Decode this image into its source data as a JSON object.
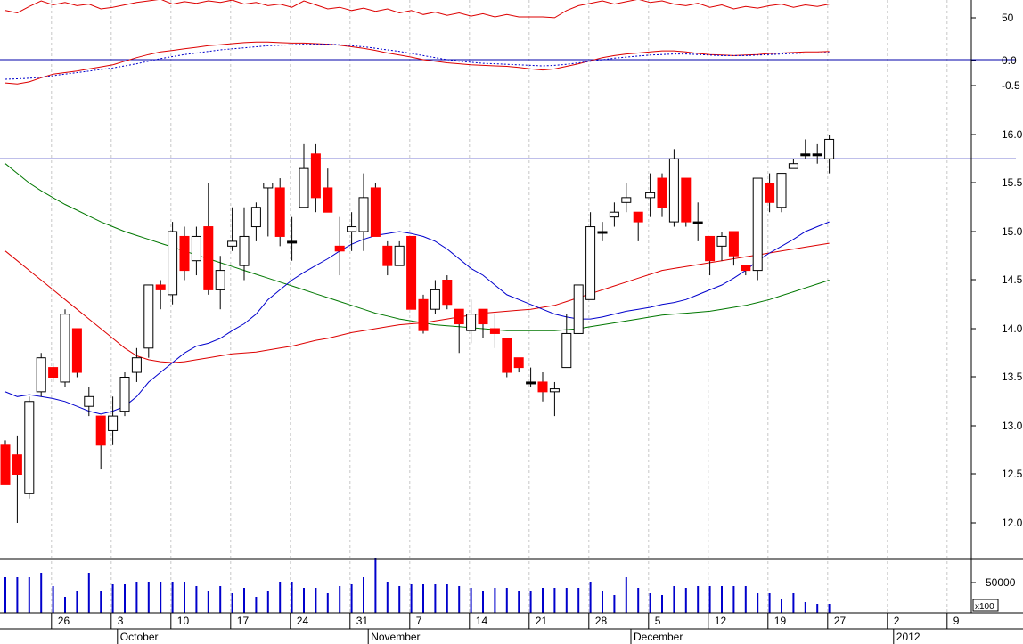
{
  "chart_data": {
    "type": "candlestick",
    "price_axis": {
      "ticks": [
        "16.0",
        "15.5",
        "15.0",
        "14.5",
        "14.0",
        "13.5",
        "13.0",
        "12.5",
        "12.0"
      ],
      "ylim": [
        11.6,
        16.5
      ]
    },
    "indicator_axis": {
      "ticks": [
        "50",
        "0.0",
        "-0.5"
      ]
    },
    "volume_axis": {
      "ticks": [
        "50000"
      ],
      "multiplier_label": "x100"
    },
    "x_day_labels": [
      {
        "label": "26",
        "bar": 2
      },
      {
        "label": "3",
        "bar": 7
      },
      {
        "label": "10",
        "bar": 12
      },
      {
        "label": "17",
        "bar": 17
      },
      {
        "label": "24",
        "bar": 22
      },
      {
        "label": "31",
        "bar": 27
      },
      {
        "label": "7",
        "bar": 32
      },
      {
        "label": "14",
        "bar": 37
      },
      {
        "label": "21",
        "bar": 42
      },
      {
        "label": "28",
        "bar": 47
      },
      {
        "label": "5",
        "bar": 52
      },
      {
        "label": "12",
        "bar": 57
      },
      {
        "label": "19",
        "bar": 62
      },
      {
        "label": "27",
        "bar": 67
      },
      {
        "label": "2",
        "bar": 72
      },
      {
        "label": "9",
        "bar": 77
      }
    ],
    "x_month_labels": [
      {
        "label": "October",
        "bar": 7
      },
      {
        "label": "November",
        "bar": 28
      },
      {
        "label": "December",
        "bar": 50
      },
      {
        "label": "2012",
        "bar": 72
      }
    ],
    "resistance_level": 15.75,
    "zero_line": 0.0,
    "candles": [
      [
        12.8,
        12.4,
        12.85,
        12.4
      ],
      [
        12.7,
        12.5,
        12.9,
        12.0
      ],
      [
        12.3,
        13.25,
        13.3,
        12.25
      ],
      [
        13.35,
        13.7,
        13.75,
        13.3
      ],
      [
        13.6,
        13.5,
        13.65,
        13.45
      ],
      [
        13.45,
        14.15,
        14.2,
        13.4
      ],
      [
        14.0,
        13.55,
        14.0,
        13.5
      ],
      [
        13.2,
        13.3,
        13.4,
        13.1
      ],
      [
        13.1,
        12.8,
        13.1,
        12.55
      ],
      [
        12.95,
        13.1,
        13.3,
        12.8
      ],
      [
        13.15,
        13.5,
        13.55,
        13.1
      ],
      [
        13.55,
        13.7,
        13.8,
        13.45
      ],
      [
        13.8,
        14.45,
        14.45,
        13.7
      ],
      [
        14.45,
        14.4,
        14.5,
        14.2
      ],
      [
        14.35,
        15.0,
        15.1,
        14.25
      ],
      [
        14.95,
        14.6,
        15.05,
        14.5
      ],
      [
        14.7,
        14.95,
        15.05,
        14.55
      ],
      [
        15.05,
        14.4,
        15.5,
        14.35
      ],
      [
        14.4,
        14.6,
        14.75,
        14.2
      ],
      [
        14.85,
        14.9,
        15.25,
        14.8
      ],
      [
        14.65,
        14.95,
        15.25,
        14.5
      ],
      [
        15.05,
        15.25,
        15.3,
        14.9
      ],
      [
        15.45,
        15.5,
        15.5,
        14.95
      ],
      [
        15.45,
        14.95,
        15.55,
        14.85
      ],
      [
        14.9,
        14.9,
        15.15,
        14.7
      ],
      [
        15.25,
        15.65,
        15.9,
        15.3
      ],
      [
        15.8,
        15.35,
        15.9,
        15.2
      ],
      [
        15.45,
        15.2,
        15.65,
        15.2
      ],
      [
        14.85,
        14.8,
        15.15,
        14.55
      ],
      [
        15.0,
        15.05,
        15.2,
        14.8
      ],
      [
        15.0,
        15.35,
        15.6,
        14.8
      ],
      [
        15.45,
        14.95,
        15.5,
        14.95
      ],
      [
        14.85,
        14.65,
        14.9,
        14.55
      ],
      [
        14.65,
        14.85,
        14.9,
        14.65
      ],
      [
        14.95,
        14.2,
        14.95,
        14.2
      ],
      [
        14.3,
        13.98,
        14.35,
        13.95
      ],
      [
        14.2,
        14.4,
        14.5,
        14.15
      ],
      [
        14.5,
        14.25,
        14.55,
        14.2
      ],
      [
        14.2,
        14.05,
        14.2,
        13.75
      ],
      [
        13.98,
        14.15,
        14.3,
        13.85
      ],
      [
        14.2,
        14.05,
        14.2,
        13.9
      ],
      [
        14.0,
        13.95,
        14.15,
        13.8
      ],
      [
        13.9,
        13.55,
        13.9,
        13.5
      ],
      [
        13.7,
        13.6,
        13.7,
        13.55
      ],
      [
        13.45,
        13.45,
        13.6,
        13.4
      ],
      [
        13.45,
        13.35,
        13.55,
        13.25
      ],
      [
        13.35,
        13.38,
        13.45,
        13.1
      ],
      [
        13.6,
        13.95,
        14.15,
        13.6
      ],
      [
        13.95,
        14.45,
        14.45,
        13.95
      ],
      [
        14.3,
        15.05,
        15.2,
        14.3
      ],
      [
        15.0,
        15.0,
        15.1,
        14.9
      ],
      [
        15.15,
        15.2,
        15.3,
        15.05
      ],
      [
        15.3,
        15.35,
        15.5,
        15.2
      ],
      [
        15.2,
        15.1,
        15.2,
        14.9
      ],
      [
        15.35,
        15.4,
        15.6,
        15.15
      ],
      [
        15.55,
        15.25,
        15.6,
        15.15
      ],
      [
        15.1,
        15.75,
        15.85,
        15.05
      ],
      [
        15.55,
        15.1,
        15.55,
        15.05
      ],
      [
        15.1,
        15.1,
        15.3,
        14.9
      ],
      [
        14.95,
        14.7,
        14.95,
        14.55
      ],
      [
        14.85,
        14.95,
        15.0,
        14.7
      ],
      [
        15.0,
        14.75,
        15.0,
        14.65
      ],
      [
        14.65,
        14.6,
        14.65,
        14.55
      ],
      [
        14.6,
        15.55,
        15.55,
        14.5
      ],
      [
        15.5,
        15.3,
        15.6,
        15.2
      ],
      [
        15.25,
        15.6,
        15.6,
        15.2
      ],
      [
        15.65,
        15.7,
        15.75,
        15.65
      ],
      [
        15.8,
        15.8,
        15.95,
        15.75
      ],
      [
        15.8,
        15.8,
        15.9,
        15.7
      ],
      [
        15.75,
        15.95,
        16.0,
        15.6
      ]
    ],
    "ma_short_blue": [
      13.35,
      13.3,
      13.32,
      13.3,
      13.28,
      13.25,
      13.2,
      13.15,
      13.12,
      13.15,
      13.2,
      13.3,
      13.45,
      13.55,
      13.65,
      13.75,
      13.82,
      13.85,
      13.9,
      13.98,
      14.05,
      14.15,
      14.3,
      14.4,
      14.5,
      14.58,
      14.65,
      14.72,
      14.8,
      14.87,
      14.92,
      14.96,
      14.98,
      15.0,
      14.98,
      14.95,
      14.9,
      14.82,
      14.72,
      14.62,
      14.55,
      14.45,
      14.35,
      14.3,
      14.25,
      14.2,
      14.15,
      14.12,
      14.1,
      14.1,
      14.12,
      14.15,
      14.18,
      14.2,
      14.22,
      14.25,
      14.27,
      14.3,
      14.35,
      14.4,
      14.45,
      14.52,
      14.6,
      14.7,
      14.78,
      14.85,
      14.92,
      15.0,
      15.05,
      15.1
    ],
    "ma_mid_red": [
      14.8,
      14.7,
      14.6,
      14.5,
      14.4,
      14.3,
      14.2,
      14.1,
      14.0,
      13.9,
      13.8,
      13.72,
      13.68,
      13.66,
      13.65,
      13.66,
      13.68,
      13.7,
      13.72,
      13.74,
      13.75,
      13.76,
      13.78,
      13.8,
      13.82,
      13.85,
      13.88,
      13.9,
      13.93,
      13.96,
      13.98,
      14.0,
      14.02,
      14.04,
      14.05,
      14.06,
      14.08,
      14.1,
      14.12,
      14.14,
      14.16,
      14.17,
      14.18,
      14.19,
      14.2,
      14.22,
      14.24,
      14.28,
      14.32,
      14.36,
      14.4,
      14.44,
      14.48,
      14.52,
      14.56,
      14.6,
      14.62,
      14.64,
      14.66,
      14.68,
      14.7,
      14.72,
      14.74,
      14.76,
      14.78,
      14.8,
      14.82,
      14.84,
      14.86,
      14.88
    ],
    "ma_long_green": [
      15.7,
      15.6,
      15.5,
      15.42,
      15.35,
      15.28,
      15.22,
      15.16,
      15.1,
      15.05,
      15.0,
      14.96,
      14.92,
      14.88,
      14.84,
      14.8,
      14.76,
      14.72,
      14.68,
      14.64,
      14.6,
      14.56,
      14.52,
      14.48,
      14.44,
      14.4,
      14.36,
      14.32,
      14.28,
      14.24,
      14.2,
      14.16,
      14.13,
      14.1,
      14.08,
      14.06,
      14.04,
      14.03,
      14.02,
      14.01,
      14.0,
      13.99,
      13.98,
      13.98,
      13.98,
      13.98,
      13.98,
      13.99,
      14.0,
      14.02,
      14.04,
      14.06,
      14.08,
      14.1,
      14.12,
      14.14,
      14.15,
      14.16,
      14.17,
      14.18,
      14.2,
      14.22,
      14.24,
      14.27,
      14.3,
      14.34,
      14.38,
      14.42,
      14.46,
      14.5
    ],
    "osc_upper_red": [
      58,
      55,
      63,
      70,
      65,
      68,
      64,
      66,
      60,
      62,
      65,
      68,
      70,
      72,
      66,
      69,
      67,
      70,
      68,
      71,
      66,
      68,
      64,
      66,
      62,
      70,
      65,
      60,
      62,
      58,
      61,
      57,
      60,
      55,
      58,
      53,
      56,
      52,
      55,
      51,
      54,
      50,
      53,
      50,
      50,
      50,
      49,
      58,
      64,
      67,
      70,
      66,
      69,
      72,
      68,
      70,
      66,
      64,
      67,
      62,
      65,
      60,
      63,
      61,
      64,
      66,
      62,
      65,
      63,
      66
    ],
    "osc_macd_red": [
      -0.45,
      -0.47,
      -0.43,
      -0.35,
      -0.28,
      -0.25,
      -0.22,
      -0.18,
      -0.14,
      -0.1,
      -0.03,
      0.04,
      0.1,
      0.15,
      0.18,
      0.21,
      0.24,
      0.27,
      0.29,
      0.31,
      0.33,
      0.34,
      0.34,
      0.33,
      0.32,
      0.32,
      0.31,
      0.3,
      0.28,
      0.25,
      0.22,
      0.18,
      0.13,
      0.09,
      0.05,
      0.0,
      -0.03,
      -0.06,
      -0.08,
      -0.1,
      -0.11,
      -0.12,
      -0.13,
      -0.15,
      -0.18,
      -0.2,
      -0.18,
      -0.13,
      -0.08,
      -0.02,
      0.04,
      0.08,
      0.11,
      0.13,
      0.15,
      0.17,
      0.17,
      0.15,
      0.12,
      0.1,
      0.09,
      0.08,
      0.09,
      0.1,
      0.12,
      0.13,
      0.14,
      0.15,
      0.15,
      0.16
    ],
    "osc_signal_blue_dotted": [
      -0.38,
      -0.37,
      -0.36,
      -0.34,
      -0.31,
      -0.28,
      -0.25,
      -0.22,
      -0.19,
      -0.16,
      -0.12,
      -0.08,
      -0.03,
      0.02,
      0.06,
      0.1,
      0.13,
      0.16,
      0.19,
      0.21,
      0.23,
      0.25,
      0.27,
      0.28,
      0.29,
      0.3,
      0.3,
      0.3,
      0.29,
      0.27,
      0.25,
      0.22,
      0.19,
      0.16,
      0.12,
      0.08,
      0.04,
      0.0,
      -0.03,
      -0.05,
      -0.07,
      -0.08,
      -0.09,
      -0.1,
      -0.11,
      -0.12,
      -0.11,
      -0.09,
      -0.06,
      -0.03,
      0.0,
      0.03,
      0.05,
      0.07,
      0.09,
      0.1,
      0.11,
      0.11,
      0.1,
      0.09,
      0.08,
      0.08,
      0.08,
      0.09,
      0.1,
      0.11,
      0.12,
      0.13,
      0.13,
      0.14
    ],
    "volume": [
      40,
      40,
      40,
      45,
      30,
      18,
      25,
      45,
      25,
      32,
      32,
      35,
      35,
      35,
      35,
      35,
      30,
      25,
      30,
      22,
      28,
      18,
      25,
      35,
      35,
      28,
      28,
      22,
      30,
      32,
      40,
      62,
      35,
      30,
      32,
      32,
      32,
      32,
      30,
      28,
      25,
      28,
      28,
      25,
      25,
      28,
      28,
      28,
      28,
      35,
      25,
      20,
      40,
      28,
      22,
      20,
      30,
      28,
      30,
      30,
      30,
      30,
      30,
      22,
      22,
      15,
      22,
      12,
      10,
      10
    ],
    "colors": {
      "bull_fill": "#ffffff",
      "bear_fill": "#ff0000",
      "doji_fill": "#000000",
      "ma_short": "#0000cc",
      "ma_mid": "#dd0000",
      "ma_long": "#007700",
      "reference_lines": "#0000aa",
      "volume": "#0000cc"
    }
  }
}
